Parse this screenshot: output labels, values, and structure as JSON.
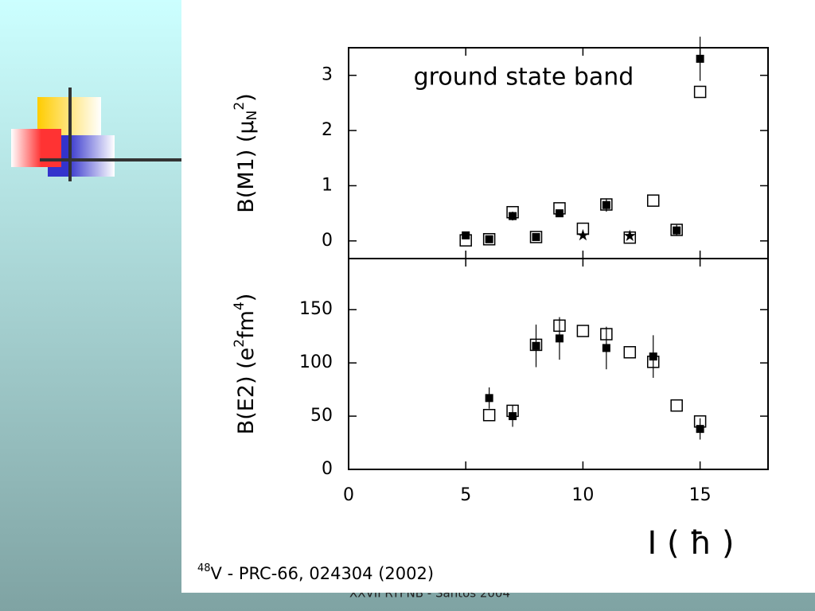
{
  "slide": {
    "footer": "XXVII RTFNB - Santos 2004",
    "caption": {
      "sup": "48",
      "text": "V - PRC-66, 024304 (2002)"
    }
  },
  "chart_data": [
    {
      "type": "scatter",
      "annotation": "ground state band",
      "ylabel": [
        {
          "text": "B(M1) ("
        },
        {
          "text": "μ"
        },
        {
          "text": "N",
          "shift": "sub"
        },
        {
          "text": "2",
          "shift": "sup"
        },
        {
          "text": ")"
        }
      ],
      "xlim": [
        0,
        17.9
      ],
      "xticks": [
        0,
        5,
        10,
        15
      ],
      "ylim": [
        -0.32,
        3.5
      ],
      "yticks": [
        0,
        1,
        2,
        3
      ],
      "series": [
        {
          "marker": "open-square",
          "color": "#000000",
          "x": [
            5,
            6,
            7,
            8,
            9,
            10,
            11,
            12,
            13,
            14,
            15
          ],
          "values": [
            0.01,
            0.03,
            0.52,
            0.07,
            0.59,
            0.22,
            0.66,
            0.06,
            0.73,
            0.2,
            2.7
          ]
        },
        {
          "marker": "filled-square",
          "color": "#000000",
          "x": [
            5,
            6,
            7,
            8,
            9,
            11,
            14,
            15
          ],
          "values": [
            0.1,
            0.03,
            0.45,
            0.07,
            0.5,
            0.65,
            0.19,
            3.3
          ],
          "errors": [
            0,
            0,
            0.08,
            0,
            0,
            0.12,
            0.1,
            0.4
          ]
        },
        {
          "marker": "star",
          "color": "#000000",
          "x": [
            10,
            12
          ],
          "values": [
            0.1,
            0.09
          ]
        }
      ]
    },
    {
      "type": "scatter",
      "ylabel": [
        {
          "text": "B(E2) (e"
        },
        {
          "text": "2",
          "shift": "sup"
        },
        {
          "text": "fm"
        },
        {
          "text": "4",
          "shift": "sup"
        },
        {
          "text": ")"
        }
      ],
      "xlabel": "I ( ħ )",
      "xlim": [
        0,
        17.9
      ],
      "xticks": [
        0,
        5,
        10,
        15
      ],
      "ylim": [
        0,
        198
      ],
      "yticks": [
        0,
        50,
        100,
        150
      ],
      "series": [
        {
          "marker": "open-square",
          "color": "#000000",
          "x": [
            6,
            7,
            8,
            9,
            10,
            11,
            12,
            13,
            14,
            15
          ],
          "values": [
            51,
            55,
            117,
            135,
            130,
            127,
            110,
            101,
            60,
            45
          ]
        },
        {
          "marker": "filled-square",
          "color": "#000000",
          "x": [
            6,
            7,
            8,
            9,
            11,
            13,
            15
          ],
          "values": [
            67,
            50,
            116,
            123,
            114,
            106,
            38
          ],
          "errors": [
            10,
            10,
            20,
            20,
            20,
            20,
            10
          ]
        }
      ]
    }
  ]
}
